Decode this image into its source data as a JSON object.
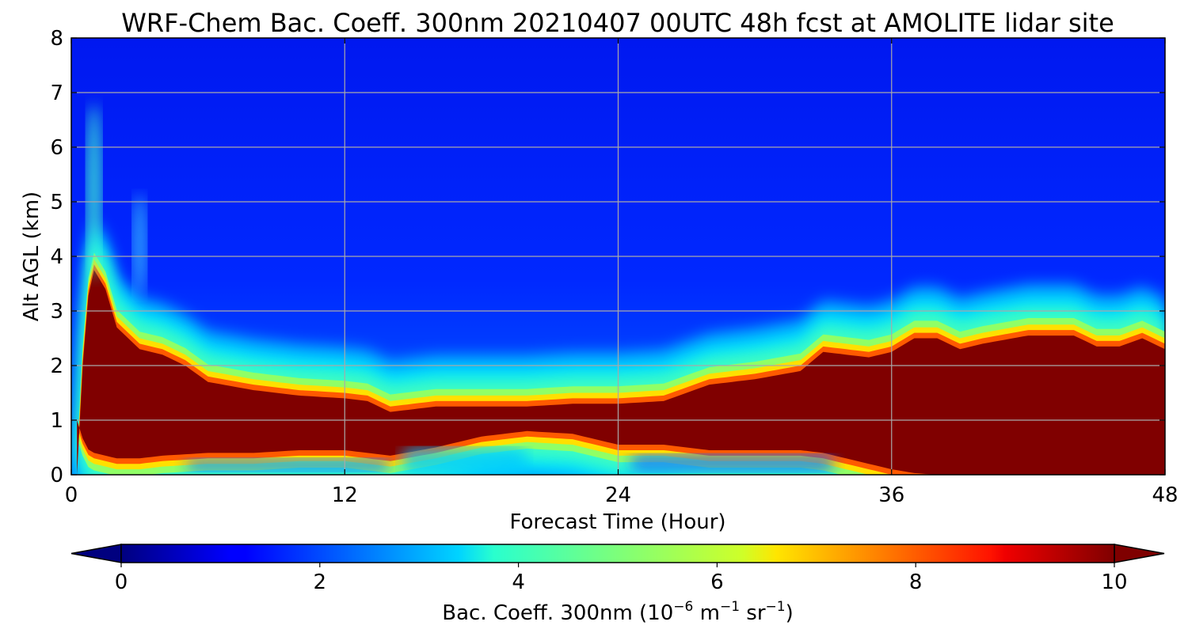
{
  "chart_data": {
    "type": "heatmap",
    "title": "WRF-Chem Bac. Coeff. 300nm  20210407 00UTC 48h fcst at AMOLITE lidar site",
    "xlabel": "Forecast Time (Hour)",
    "ylabel": "Alt AGL (km)",
    "xlim": [
      0,
      48
    ],
    "ylim": [
      0,
      8
    ],
    "x_ticks": [
      0,
      12,
      24,
      36,
      48
    ],
    "y_ticks": [
      0,
      1,
      2,
      3,
      4,
      5,
      6,
      7,
      8
    ],
    "grid": true,
    "colormap": "jet",
    "colorbar": {
      "label_text": "Bac. Coeff. 300nm  (10",
      "label_exp1": "−6",
      "label_mid": " m",
      "label_exp2": "−1",
      "label_mid2": " sr",
      "label_exp3": "−1",
      "label_end": ")",
      "range": [
        0,
        10
      ],
      "ticks": [
        0,
        2,
        4,
        6,
        8,
        10
      ],
      "extend": "both",
      "orientation": "horizontal",
      "under_color": "#00007f",
      "over_color": "#7f0000"
    },
    "layer_description": {
      "saturated_layer_bottom_km": {
        "hours": [
          0.3,
          0.6,
          1,
          2,
          3,
          4,
          6,
          8,
          10,
          12,
          14,
          16,
          18,
          20,
          22,
          24,
          26,
          28,
          30,
          32,
          33,
          34,
          35,
          36,
          37,
          38
        ],
        "km": [
          1.0,
          0.5,
          0.4,
          0.3,
          0.3,
          0.35,
          0.4,
          0.4,
          0.45,
          0.45,
          0.35,
          0.5,
          0.7,
          0.8,
          0.75,
          0.55,
          0.55,
          0.45,
          0.45,
          0.45,
          0.4,
          0.3,
          0.2,
          0.1,
          0.03,
          0.0
        ]
      },
      "saturated_layer_top_km": {
        "hours": [
          0.4,
          0.6,
          1,
          1.5,
          2,
          3,
          4,
          5,
          6,
          8,
          10,
          12,
          13,
          14,
          16,
          18,
          20,
          22,
          24,
          26,
          27,
          28,
          30,
          32,
          33,
          34,
          35,
          36,
          37,
          38,
          39,
          40,
          42,
          44,
          45,
          46,
          47,
          48
        ],
        "km": [
          1.0,
          3.0,
          3.75,
          3.4,
          2.7,
          2.3,
          2.2,
          2.0,
          1.7,
          1.55,
          1.45,
          1.4,
          1.35,
          1.15,
          1.25,
          1.25,
          1.25,
          1.3,
          1.3,
          1.35,
          1.5,
          1.65,
          1.75,
          1.9,
          2.25,
          2.2,
          2.15,
          2.25,
          2.5,
          2.5,
          2.3,
          2.4,
          2.55,
          2.55,
          2.35,
          2.35,
          2.5,
          2.3
        ]
      }
    }
  }
}
